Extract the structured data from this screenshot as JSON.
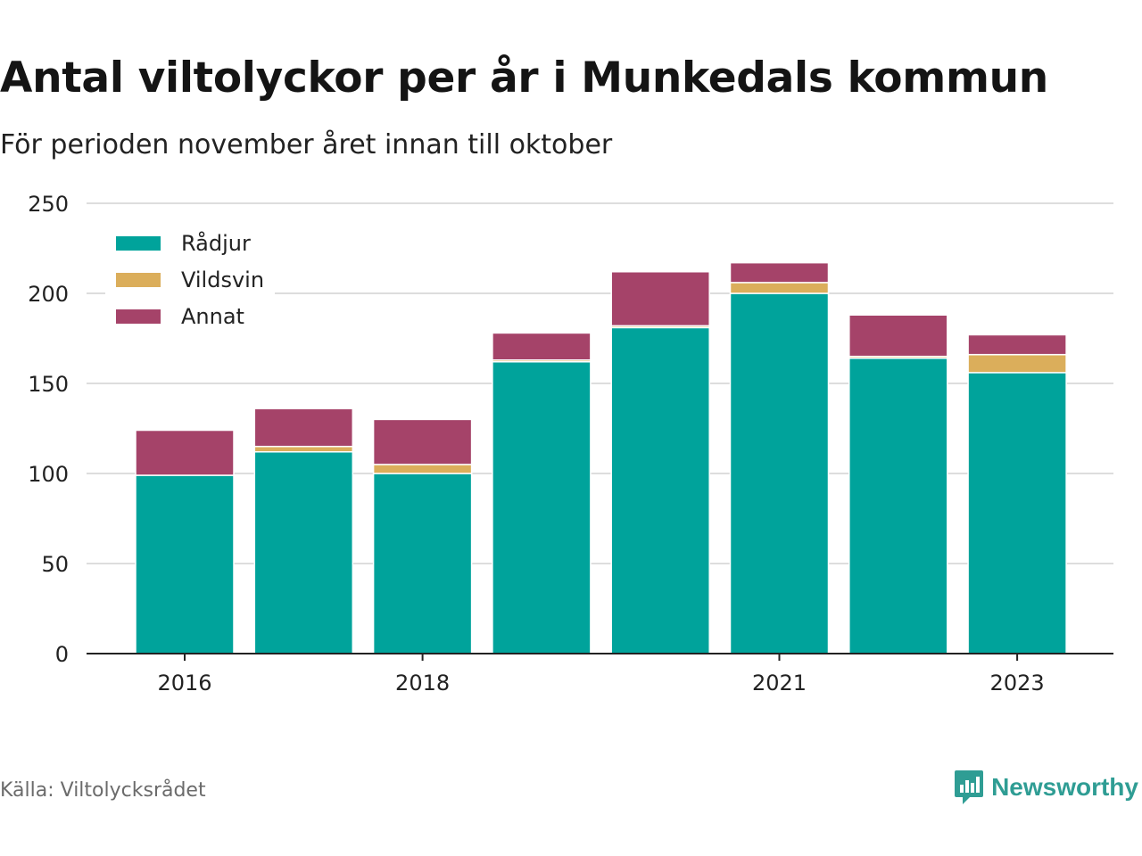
{
  "title": "Antal viltolyckor per år i Munkedals kommun",
  "subtitle": "För perioden november året innan till oktober",
  "source": "Källa: Viltolycksrådet",
  "brand": {
    "name": "Newsworthy",
    "icon": "newsworthy-logo-icon",
    "color": "#2f9d94"
  },
  "chart_data": {
    "type": "bar",
    "stacked": true,
    "categories": [
      "2016",
      "2017",
      "2018",
      "2019",
      "2020",
      "2021",
      "2022",
      "2023"
    ],
    "x_tick_labels": [
      "2016",
      "",
      "2018",
      "",
      "",
      "2021",
      "",
      "2023"
    ],
    "series": [
      {
        "name": "Rådjur",
        "color": "#00a39b",
        "values": [
          99,
          112,
          100,
          162,
          181,
          200,
          164,
          156
        ]
      },
      {
        "name": "Vildsvin",
        "color": "#dbae5b",
        "values": [
          0,
          3,
          5,
          1,
          1,
          6,
          1,
          10
        ]
      },
      {
        "name": "Annat",
        "color": "#a54369",
        "values": [
          25,
          21,
          25,
          15,
          30,
          11,
          23,
          11
        ]
      }
    ],
    "ylim": [
      0,
      250
    ],
    "yticks": [
      0,
      50,
      100,
      150,
      200,
      250
    ],
    "grid": true,
    "legend_position": "top-left",
    "xlabel": "",
    "ylabel": ""
  }
}
